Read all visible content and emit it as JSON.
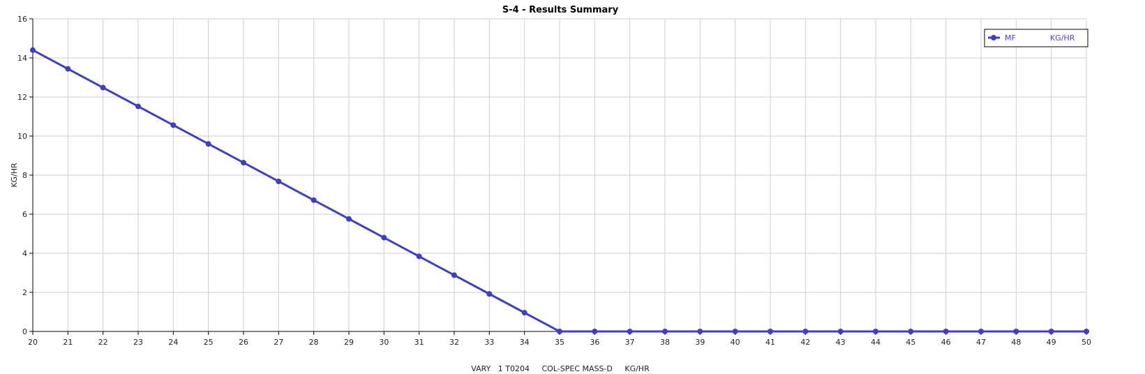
{
  "chart_data": {
    "type": "line",
    "title": "S-4 - Results Summary",
    "xlabel": "VARY   1 T0204     COL-SPEC MASS-D     KG/HR",
    "ylabel": "KG/HR",
    "xlim": [
      20,
      50
    ],
    "ylim": [
      0,
      16
    ],
    "xticks": [
      20,
      21,
      22,
      23,
      24,
      25,
      26,
      27,
      28,
      29,
      30,
      31,
      32,
      33,
      34,
      35,
      36,
      37,
      38,
      39,
      40,
      41,
      42,
      43,
      44,
      45,
      46,
      47,
      48,
      49,
      50
    ],
    "yticks": [
      0,
      2,
      4,
      6,
      8,
      10,
      12,
      14,
      16
    ],
    "grid": true,
    "legend_placement": "top-right",
    "series": [
      {
        "name": "MF",
        "unit": "KG/HR",
        "color": "#3f3fc4",
        "x": [
          20,
          21,
          22,
          23,
          24,
          25,
          26,
          27,
          28,
          29,
          30,
          31,
          32,
          33,
          34,
          35,
          36,
          37,
          38,
          39,
          40,
          41,
          42,
          43,
          44,
          45,
          46,
          47,
          48,
          49,
          50
        ],
        "y": [
          14.4,
          13.44,
          12.48,
          11.52,
          10.56,
          9.6,
          8.64,
          7.68,
          6.72,
          5.76,
          4.8,
          3.84,
          2.88,
          1.92,
          0.96,
          0,
          0,
          0,
          0,
          0,
          0,
          0,
          0,
          0,
          0,
          0,
          0,
          0,
          0,
          0,
          0
        ]
      }
    ]
  }
}
